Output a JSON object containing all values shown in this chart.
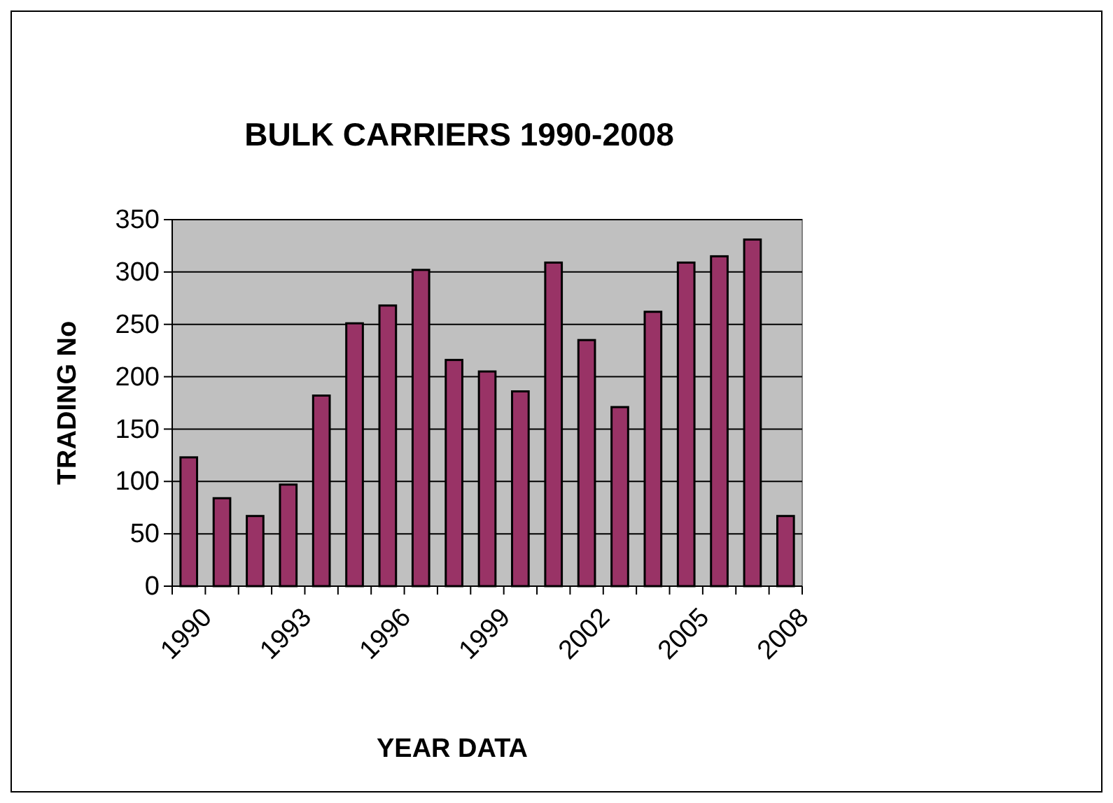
{
  "chart_data": {
    "type": "bar",
    "title": "BULK CARRIERS 1990-2008",
    "xlabel": "YEAR DATA",
    "ylabel": "TRADING No",
    "categories": [
      "1990",
      null,
      null,
      "1993",
      null,
      null,
      "1996",
      null,
      null,
      "1999",
      null,
      null,
      "2002",
      null,
      null,
      "2005",
      null,
      null,
      "2008"
    ],
    "values": [
      123,
      84,
      67,
      97,
      182,
      251,
      268,
      302,
      216,
      205,
      186,
      309,
      235,
      171,
      262,
      309,
      315,
      331,
      67
    ],
    "color": "#993366",
    "ylim": [
      0,
      350
    ],
    "yticks": [
      0,
      50,
      100,
      150,
      200,
      250,
      300,
      350
    ],
    "grid": "y"
  }
}
